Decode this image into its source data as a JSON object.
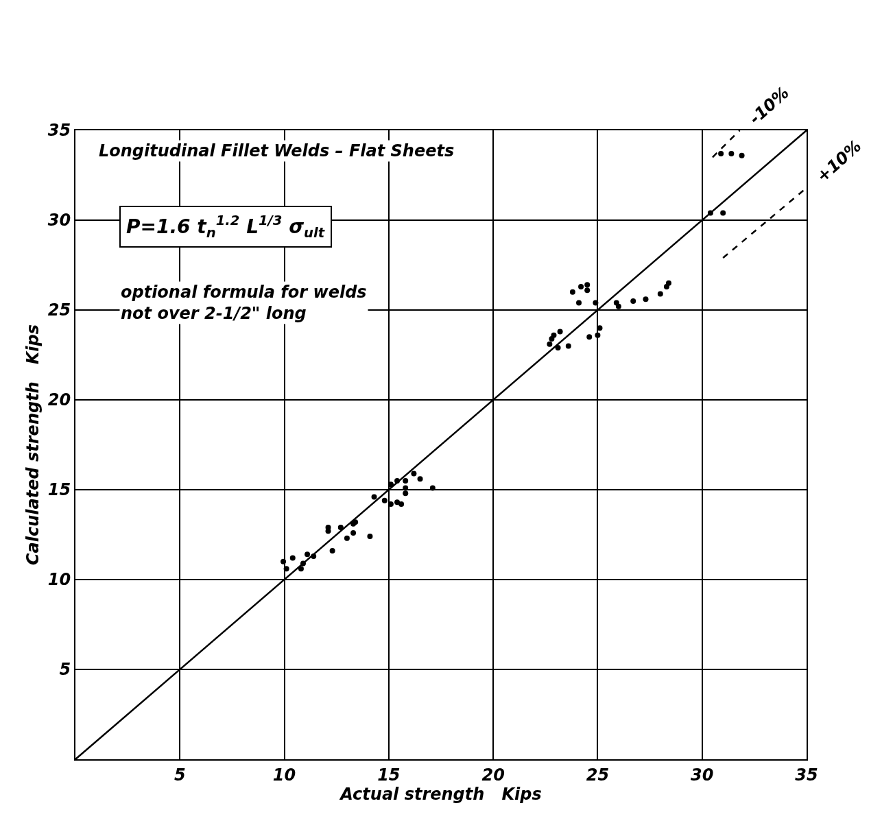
{
  "chart_data": {
    "type": "scatter",
    "title": "Longitudinal Fillet Welds – Flat Sheets",
    "xlabel": "Actual strength   Kips",
    "ylabel": "Calculated strength   Kips",
    "xlim": [
      0,
      35
    ],
    "ylim": [
      0,
      35
    ],
    "xticks": [
      5,
      10,
      15,
      20,
      25,
      30,
      35
    ],
    "yticks": [
      5,
      10,
      15,
      20,
      25,
      30,
      35
    ],
    "grid": true,
    "series": [
      {
        "marker": "circle",
        "color": "#000000",
        "x": [
          9.95,
          10.1,
          10.4,
          10.8,
          11.1,
          10.9,
          11.4,
          12.3,
          12.1,
          12.1,
          12.7,
          13.0,
          13.3,
          13.3,
          13.4,
          14.1,
          14.3,
          14.8,
          15.1,
          15.4,
          15.6,
          15.1,
          15.4,
          15.8,
          15.8,
          15.8,
          16.2,
          16.5,
          17.1,
          22.7,
          22.8,
          22.9,
          23.1,
          23.2,
          23.6,
          23.8,
          24.1,
          24.2,
          24.5,
          24.5,
          24.6,
          24.9,
          25.0,
          25.1,
          25.9,
          26.0,
          26.7,
          27.3,
          28.0,
          28.3,
          28.4,
          30.4,
          30.9,
          31.0,
          31.4,
          31.9
        ],
        "values": [
          11.0,
          10.6,
          11.2,
          10.6,
          11.4,
          10.9,
          11.3,
          11.6,
          12.9,
          12.7,
          12.9,
          12.3,
          12.6,
          13.1,
          13.2,
          12.4,
          14.6,
          14.4,
          14.2,
          14.3,
          14.2,
          15.3,
          15.5,
          15.5,
          15.1,
          14.8,
          15.9,
          15.6,
          15.1,
          23.1,
          23.4,
          23.6,
          22.9,
          23.8,
          23.0,
          26.0,
          25.4,
          26.3,
          26.4,
          26.1,
          23.5,
          25.4,
          23.6,
          24.0,
          25.4,
          25.2,
          25.5,
          25.6,
          25.9,
          26.3,
          26.5,
          30.4,
          33.7,
          30.4,
          33.7,
          33.6
        ]
      },
      {
        "type": "line",
        "color": "#000000",
        "line_style": "solid",
        "x": [
          0,
          35
        ],
        "values": [
          0,
          35
        ]
      },
      {
        "type": "line",
        "color": "#000000",
        "line_style": "dashed",
        "x": [
          30.5,
          31.8
        ],
        "values": [
          33.5,
          35
        ]
      },
      {
        "type": "line",
        "color": "#000000",
        "line_style": "dashed",
        "x": [
          31,
          35
        ],
        "values": [
          27.9,
          31.8
        ]
      }
    ],
    "annotations": [
      "P=1.6 t$_{n}$$^{1.2}$ L$^{1/3}$ σ$_{ult}$",
      "optional formula for welds\nnot over 2-1/2\" long",
      {
        "text": "-10%",
        "x": 31.8,
        "y": 35
      },
      {
        "text": "+10%",
        "x": 35,
        "y": 31.8
      }
    ]
  }
}
